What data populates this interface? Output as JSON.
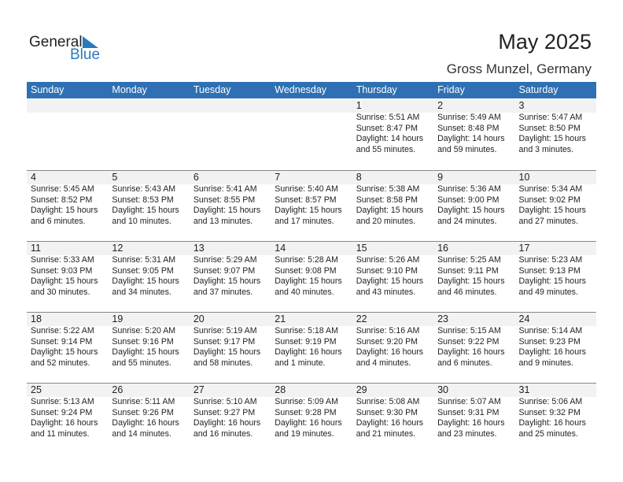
{
  "logo": {
    "general": "General",
    "blue": "Blue"
  },
  "title": "May 2025",
  "location": "Gross Munzel, Germany",
  "colors": {
    "header": "#2e70b3",
    "band": "#f2f2f2",
    "logo_blue": "#2a7ac0"
  },
  "weekdays": [
    "Sunday",
    "Monday",
    "Tuesday",
    "Wednesday",
    "Thursday",
    "Friday",
    "Saturday"
  ],
  "weeks": [
    [
      null,
      null,
      null,
      null,
      {
        "day": "1",
        "sunrise": "Sunrise: 5:51 AM",
        "sunset": "Sunset: 8:47 PM",
        "daylight1": "Daylight: 14 hours",
        "daylight2": "and 55 minutes."
      },
      {
        "day": "2",
        "sunrise": "Sunrise: 5:49 AM",
        "sunset": "Sunset: 8:48 PM",
        "daylight1": "Daylight: 14 hours",
        "daylight2": "and 59 minutes."
      },
      {
        "day": "3",
        "sunrise": "Sunrise: 5:47 AM",
        "sunset": "Sunset: 8:50 PM",
        "daylight1": "Daylight: 15 hours",
        "daylight2": "and 3 minutes."
      }
    ],
    [
      {
        "day": "4",
        "sunrise": "Sunrise: 5:45 AM",
        "sunset": "Sunset: 8:52 PM",
        "daylight1": "Daylight: 15 hours",
        "daylight2": "and 6 minutes."
      },
      {
        "day": "5",
        "sunrise": "Sunrise: 5:43 AM",
        "sunset": "Sunset: 8:53 PM",
        "daylight1": "Daylight: 15 hours",
        "daylight2": "and 10 minutes."
      },
      {
        "day": "6",
        "sunrise": "Sunrise: 5:41 AM",
        "sunset": "Sunset: 8:55 PM",
        "daylight1": "Daylight: 15 hours",
        "daylight2": "and 13 minutes."
      },
      {
        "day": "7",
        "sunrise": "Sunrise: 5:40 AM",
        "sunset": "Sunset: 8:57 PM",
        "daylight1": "Daylight: 15 hours",
        "daylight2": "and 17 minutes."
      },
      {
        "day": "8",
        "sunrise": "Sunrise: 5:38 AM",
        "sunset": "Sunset: 8:58 PM",
        "daylight1": "Daylight: 15 hours",
        "daylight2": "and 20 minutes."
      },
      {
        "day": "9",
        "sunrise": "Sunrise: 5:36 AM",
        "sunset": "Sunset: 9:00 PM",
        "daylight1": "Daylight: 15 hours",
        "daylight2": "and 24 minutes."
      },
      {
        "day": "10",
        "sunrise": "Sunrise: 5:34 AM",
        "sunset": "Sunset: 9:02 PM",
        "daylight1": "Daylight: 15 hours",
        "daylight2": "and 27 minutes."
      }
    ],
    [
      {
        "day": "11",
        "sunrise": "Sunrise: 5:33 AM",
        "sunset": "Sunset: 9:03 PM",
        "daylight1": "Daylight: 15 hours",
        "daylight2": "and 30 minutes."
      },
      {
        "day": "12",
        "sunrise": "Sunrise: 5:31 AM",
        "sunset": "Sunset: 9:05 PM",
        "daylight1": "Daylight: 15 hours",
        "daylight2": "and 34 minutes."
      },
      {
        "day": "13",
        "sunrise": "Sunrise: 5:29 AM",
        "sunset": "Sunset: 9:07 PM",
        "daylight1": "Daylight: 15 hours",
        "daylight2": "and 37 minutes."
      },
      {
        "day": "14",
        "sunrise": "Sunrise: 5:28 AM",
        "sunset": "Sunset: 9:08 PM",
        "daylight1": "Daylight: 15 hours",
        "daylight2": "and 40 minutes."
      },
      {
        "day": "15",
        "sunrise": "Sunrise: 5:26 AM",
        "sunset": "Sunset: 9:10 PM",
        "daylight1": "Daylight: 15 hours",
        "daylight2": "and 43 minutes."
      },
      {
        "day": "16",
        "sunrise": "Sunrise: 5:25 AM",
        "sunset": "Sunset: 9:11 PM",
        "daylight1": "Daylight: 15 hours",
        "daylight2": "and 46 minutes."
      },
      {
        "day": "17",
        "sunrise": "Sunrise: 5:23 AM",
        "sunset": "Sunset: 9:13 PM",
        "daylight1": "Daylight: 15 hours",
        "daylight2": "and 49 minutes."
      }
    ],
    [
      {
        "day": "18",
        "sunrise": "Sunrise: 5:22 AM",
        "sunset": "Sunset: 9:14 PM",
        "daylight1": "Daylight: 15 hours",
        "daylight2": "and 52 minutes."
      },
      {
        "day": "19",
        "sunrise": "Sunrise: 5:20 AM",
        "sunset": "Sunset: 9:16 PM",
        "daylight1": "Daylight: 15 hours",
        "daylight2": "and 55 minutes."
      },
      {
        "day": "20",
        "sunrise": "Sunrise: 5:19 AM",
        "sunset": "Sunset: 9:17 PM",
        "daylight1": "Daylight: 15 hours",
        "daylight2": "and 58 minutes."
      },
      {
        "day": "21",
        "sunrise": "Sunrise: 5:18 AM",
        "sunset": "Sunset: 9:19 PM",
        "daylight1": "Daylight: 16 hours",
        "daylight2": "and 1 minute."
      },
      {
        "day": "22",
        "sunrise": "Sunrise: 5:16 AM",
        "sunset": "Sunset: 9:20 PM",
        "daylight1": "Daylight: 16 hours",
        "daylight2": "and 4 minutes."
      },
      {
        "day": "23",
        "sunrise": "Sunrise: 5:15 AM",
        "sunset": "Sunset: 9:22 PM",
        "daylight1": "Daylight: 16 hours",
        "daylight2": "and 6 minutes."
      },
      {
        "day": "24",
        "sunrise": "Sunrise: 5:14 AM",
        "sunset": "Sunset: 9:23 PM",
        "daylight1": "Daylight: 16 hours",
        "daylight2": "and 9 minutes."
      }
    ],
    [
      {
        "day": "25",
        "sunrise": "Sunrise: 5:13 AM",
        "sunset": "Sunset: 9:24 PM",
        "daylight1": "Daylight: 16 hours",
        "daylight2": "and 11 minutes."
      },
      {
        "day": "26",
        "sunrise": "Sunrise: 5:11 AM",
        "sunset": "Sunset: 9:26 PM",
        "daylight1": "Daylight: 16 hours",
        "daylight2": "and 14 minutes."
      },
      {
        "day": "27",
        "sunrise": "Sunrise: 5:10 AM",
        "sunset": "Sunset: 9:27 PM",
        "daylight1": "Daylight: 16 hours",
        "daylight2": "and 16 minutes."
      },
      {
        "day": "28",
        "sunrise": "Sunrise: 5:09 AM",
        "sunset": "Sunset: 9:28 PM",
        "daylight1": "Daylight: 16 hours",
        "daylight2": "and 19 minutes."
      },
      {
        "day": "29",
        "sunrise": "Sunrise: 5:08 AM",
        "sunset": "Sunset: 9:30 PM",
        "daylight1": "Daylight: 16 hours",
        "daylight2": "and 21 minutes."
      },
      {
        "day": "30",
        "sunrise": "Sunrise: 5:07 AM",
        "sunset": "Sunset: 9:31 PM",
        "daylight1": "Daylight: 16 hours",
        "daylight2": "and 23 minutes."
      },
      {
        "day": "31",
        "sunrise": "Sunrise: 5:06 AM",
        "sunset": "Sunset: 9:32 PM",
        "daylight1": "Daylight: 16 hours",
        "daylight2": "and 25 minutes."
      }
    ]
  ]
}
